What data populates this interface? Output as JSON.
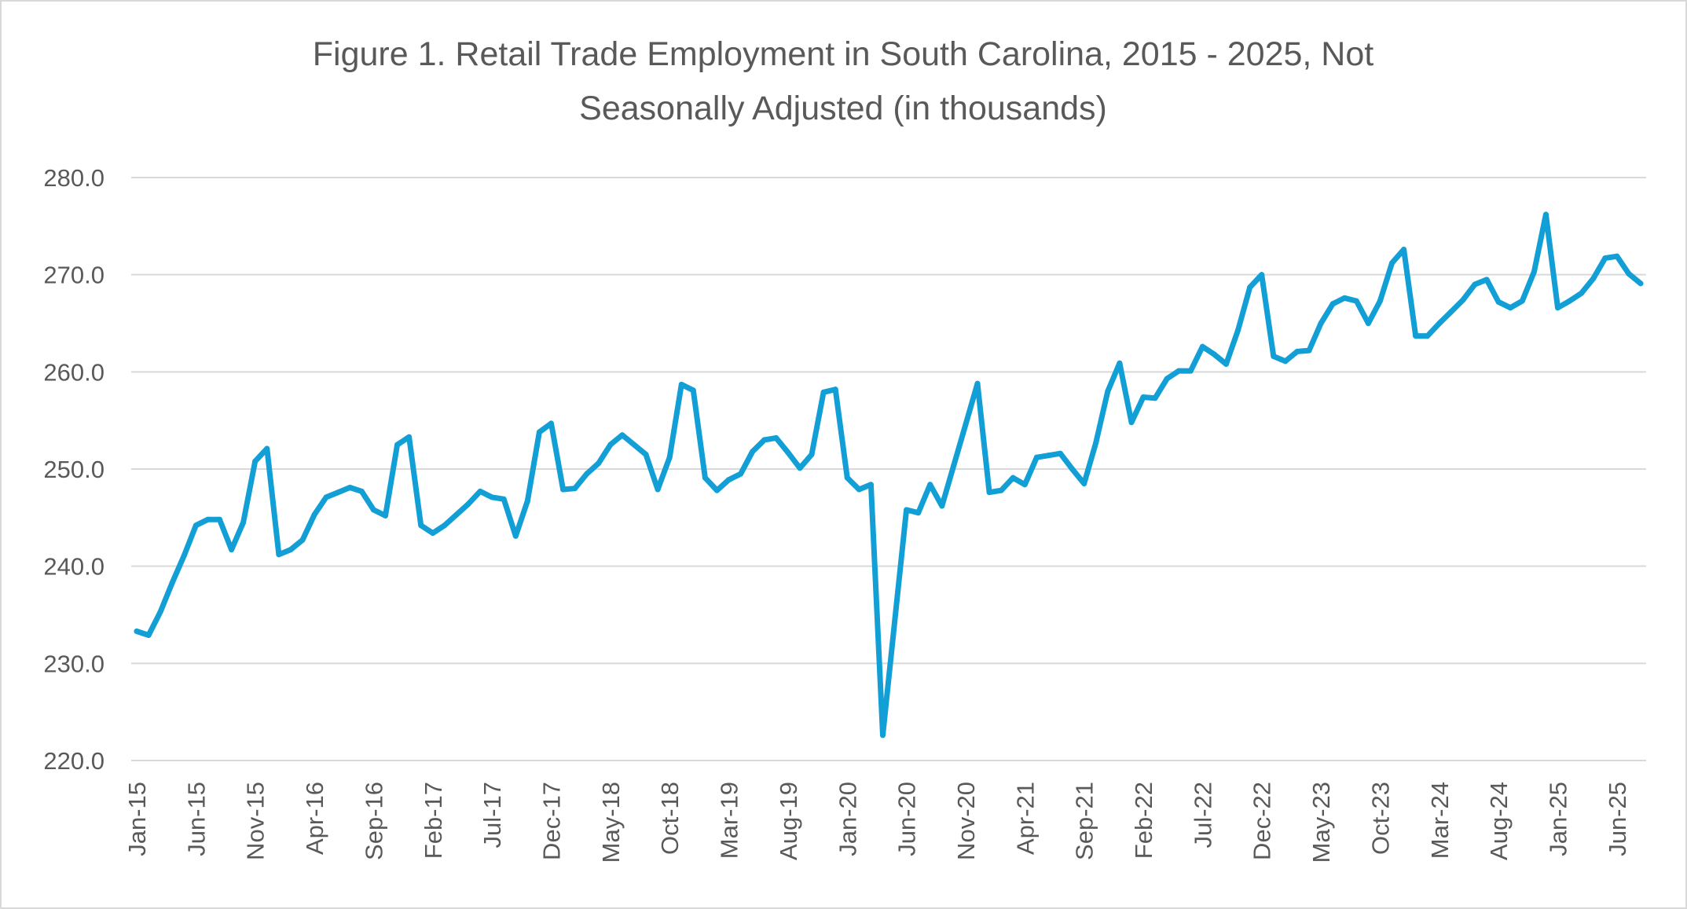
{
  "chart_data": {
    "type": "line",
    "title_lines": [
      "Figure 1. Retail Trade Employment in South Carolina, 2015 - 2025, Not",
      "Seasonally Adjusted (in thousands)"
    ],
    "xlabel": "",
    "ylabel": "",
    "ylim": [
      220,
      280
    ],
    "y_ticks": [
      220,
      230,
      240,
      250,
      260,
      270,
      280
    ],
    "y_tick_labels": [
      "220.0",
      "230.0",
      "240.0",
      "250.0",
      "260.0",
      "270.0",
      "280.0"
    ],
    "grid": "horizontal",
    "legend": "none",
    "line_color": "#129fd6",
    "grid_color": "#d9d9d9",
    "text_color": "#595959",
    "x_tick_labels": [
      "Jan-15",
      "Jun-15",
      "Nov-15",
      "Apr-16",
      "Sep-16",
      "Feb-17",
      "Jul-17",
      "Dec-17",
      "May-18",
      "Oct-18",
      "Mar-19",
      "Aug-19",
      "Jan-20",
      "Jun-20",
      "Nov-20",
      "Apr-21",
      "Sep-21",
      "Feb-22",
      "Jul-22",
      "Dec-22",
      "May-23",
      "Oct-23",
      "Mar-24",
      "Aug-24",
      "Jan-25",
      "Jun-25"
    ],
    "x": [
      "Jan-15",
      "Feb-15",
      "Mar-15",
      "Apr-15",
      "May-15",
      "Jun-15",
      "Jul-15",
      "Aug-15",
      "Sep-15",
      "Oct-15",
      "Nov-15",
      "Dec-15",
      "Jan-16",
      "Feb-16",
      "Mar-16",
      "Apr-16",
      "May-16",
      "Jun-16",
      "Jul-16",
      "Aug-16",
      "Sep-16",
      "Oct-16",
      "Nov-16",
      "Dec-16",
      "Jan-17",
      "Feb-17",
      "Mar-17",
      "Apr-17",
      "May-17",
      "Jun-17",
      "Jul-17",
      "Aug-17",
      "Sep-17",
      "Oct-17",
      "Nov-17",
      "Dec-17",
      "Jan-18",
      "Feb-18",
      "Mar-18",
      "Apr-18",
      "May-18",
      "Jun-18",
      "Jul-18",
      "Aug-18",
      "Sep-18",
      "Oct-18",
      "Nov-18",
      "Dec-18",
      "Jan-19",
      "Feb-19",
      "Mar-19",
      "Apr-19",
      "May-19",
      "Jun-19",
      "Jul-19",
      "Aug-19",
      "Sep-19",
      "Oct-19",
      "Nov-19",
      "Dec-19",
      "Jan-20",
      "Feb-20",
      "Mar-20",
      "Apr-20",
      "May-20",
      "Jun-20",
      "Jul-20",
      "Aug-20",
      "Sep-20",
      "Oct-20",
      "Nov-20",
      "Dec-20",
      "Jan-21",
      "Feb-21",
      "Mar-21",
      "Apr-21",
      "May-21",
      "Jun-21",
      "Jul-21",
      "Aug-21",
      "Sep-21",
      "Oct-21",
      "Nov-21",
      "Dec-21",
      "Jan-22",
      "Feb-22",
      "Mar-22",
      "Apr-22",
      "May-22",
      "Jun-22",
      "Jul-22",
      "Aug-22",
      "Sep-22",
      "Oct-22",
      "Nov-22",
      "Dec-22",
      "Jan-23",
      "Feb-23",
      "Mar-23",
      "Apr-23",
      "May-23",
      "Jun-23",
      "Jul-23",
      "Aug-23",
      "Sep-23",
      "Oct-23",
      "Nov-23",
      "Dec-23",
      "Jan-24",
      "Feb-24",
      "Mar-24",
      "Apr-24",
      "May-24",
      "Jun-24",
      "Jul-24",
      "Aug-24",
      "Sep-24",
      "Oct-24",
      "Nov-24",
      "Dec-24",
      "Jan-25",
      "Feb-25",
      "Mar-25",
      "Apr-25",
      "May-25",
      "Jun-25",
      "Jul-25",
      "Aug-25"
    ],
    "series": [
      {
        "values": [
          233.3,
          232.9,
          235.3,
          238.3,
          241.1,
          244.2,
          244.8,
          244.8,
          241.7,
          244.5,
          250.8,
          252.1,
          241.2,
          241.7,
          242.7,
          245.3,
          247.1,
          247.6,
          248.1,
          247.7,
          245.8,
          245.2,
          252.5,
          253.3,
          244.2,
          243.4,
          244.2,
          245.3,
          246.4,
          247.7,
          247.1,
          246.9,
          243.1,
          246.7,
          253.8,
          254.7,
          247.9,
          248.0,
          249.5,
          250.6,
          252.5,
          253.5,
          252.5,
          251.5,
          247.9,
          251.2,
          258.7,
          258.1,
          249.1,
          247.8,
          248.9,
          249.5,
          251.8,
          253.0,
          253.2,
          251.7,
          250.1,
          251.5,
          257.9,
          258.2,
          249.1,
          247.9,
          248.4,
          222.6,
          234.2,
          245.8,
          245.5,
          248.4,
          246.2,
          250.4,
          254.6,
          258.8,
          247.6,
          247.8,
          249.1,
          248.4,
          251.2,
          251.4,
          251.6,
          250.0,
          248.5,
          252.7,
          258.0,
          260.9,
          254.8,
          257.4,
          257.3,
          259.3,
          260.1,
          260.1,
          262.6,
          261.8,
          260.8,
          264.3,
          268.7,
          270.0,
          261.6,
          261.1,
          262.1,
          262.2,
          265.0,
          267.0,
          267.6,
          267.3,
          265.0,
          267.3,
          271.2,
          272.6,
          263.7,
          263.7,
          265.0,
          266.2,
          267.4,
          269.0,
          269.5,
          267.2,
          266.6,
          267.3,
          270.3,
          276.2,
          266.6,
          267.3,
          268.1,
          269.6,
          271.7,
          271.9,
          270.1,
          269.1
        ]
      }
    ]
  }
}
